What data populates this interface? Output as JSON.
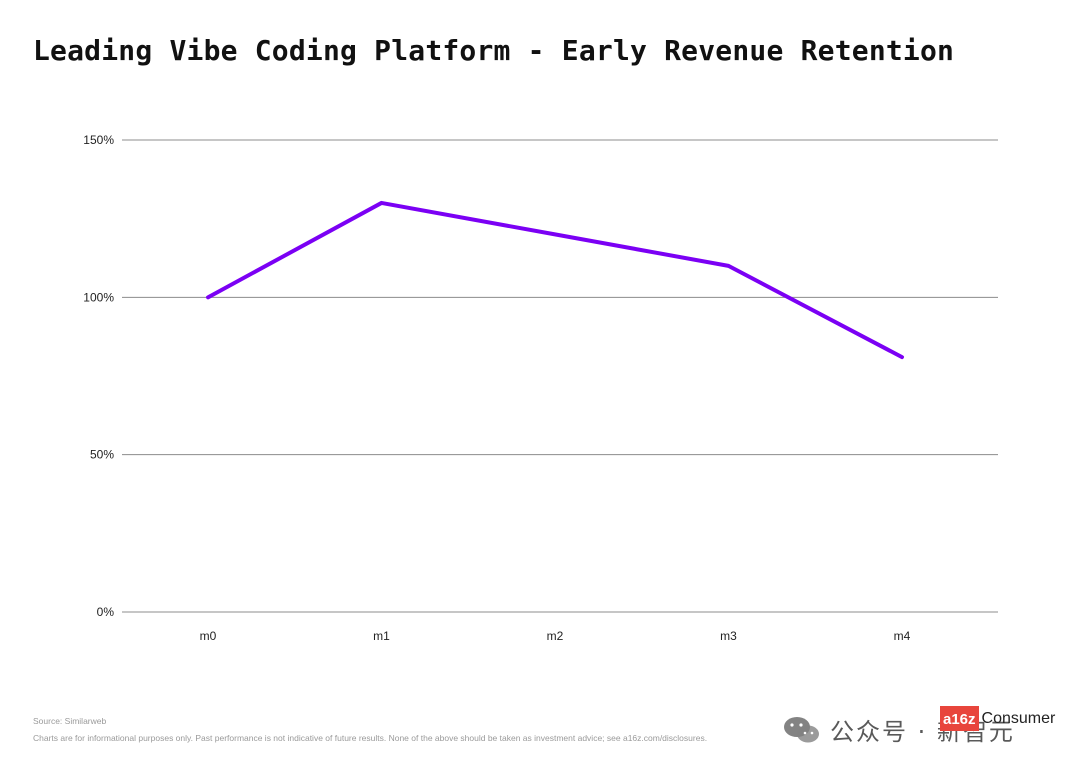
{
  "chart_data": {
    "type": "line",
    "title": "Leading Vibe Coding Platform - Early Revenue Retention",
    "xlabel": "",
    "ylabel": "",
    "categories": [
      "m0",
      "m1",
      "m2",
      "m3",
      "m4"
    ],
    "series": [
      {
        "values": [
          100,
          130,
          120,
          110,
          81
        ],
        "color": "#7b00f4"
      }
    ],
    "ylim": [
      0,
      150
    ],
    "yticks": [
      {
        "value": 0,
        "label": "0%"
      },
      {
        "value": 50,
        "label": "50%"
      },
      {
        "value": 100,
        "label": "100%"
      },
      {
        "value": 150,
        "label": "150%"
      }
    ],
    "grid": true,
    "legend": "none"
  },
  "footer": {
    "source": "Source: Similarweb",
    "disclaimer": "Charts are for informational purposes only. Past performance is not indicative of future results. None of the above should be taken as investment advice; see a16z.com/disclosures."
  },
  "watermark": {
    "icon": "wechat-icon",
    "text": "公众号 · 新智元"
  },
  "logo": {
    "badge": "a16z",
    "text": "Consumer",
    "brand_color": "#e8453c"
  }
}
